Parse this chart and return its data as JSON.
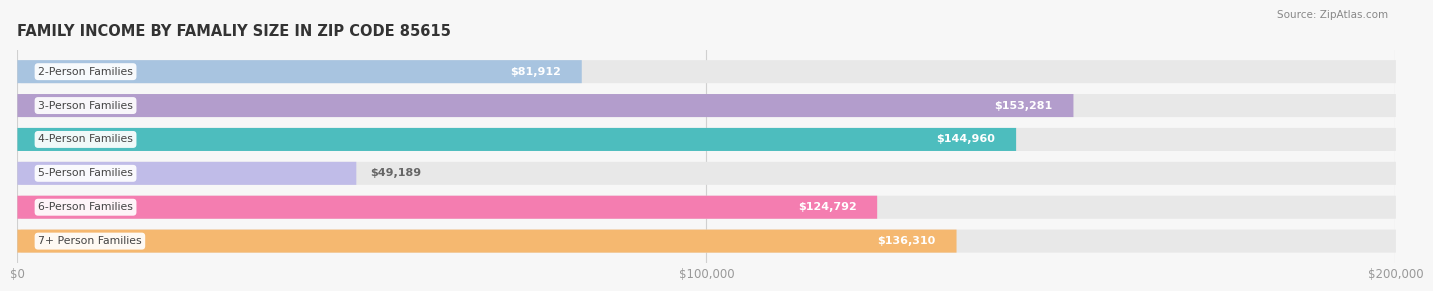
{
  "title": "FAMILY INCOME BY FAMALIY SIZE IN ZIP CODE 85615",
  "source": "Source: ZipAtlas.com",
  "categories": [
    "2-Person Families",
    "3-Person Families",
    "4-Person Families",
    "5-Person Families",
    "6-Person Families",
    "7+ Person Families"
  ],
  "values": [
    81912,
    153281,
    144960,
    49189,
    124792,
    136310
  ],
  "labels": [
    "$81,912",
    "$153,281",
    "$144,960",
    "$49,189",
    "$124,792",
    "$136,310"
  ],
  "bar_colors": [
    "#a8c4e0",
    "#b39dcc",
    "#4dbdbe",
    "#c0bce8",
    "#f47db0",
    "#f5b870"
  ],
  "bar_bg_color": "#e8e8e8",
  "background_color": "#f7f7f7",
  "xlim": [
    0,
    200000
  ],
  "xticks": [
    0,
    100000,
    200000
  ],
  "xticklabels": [
    "$0",
    "$100,000",
    "$200,000"
  ],
  "label_color_inside": "#ffffff",
  "label_color_outside": "#888888",
  "category_color": "#555555",
  "title_color": "#333333",
  "source_color": "#888888"
}
